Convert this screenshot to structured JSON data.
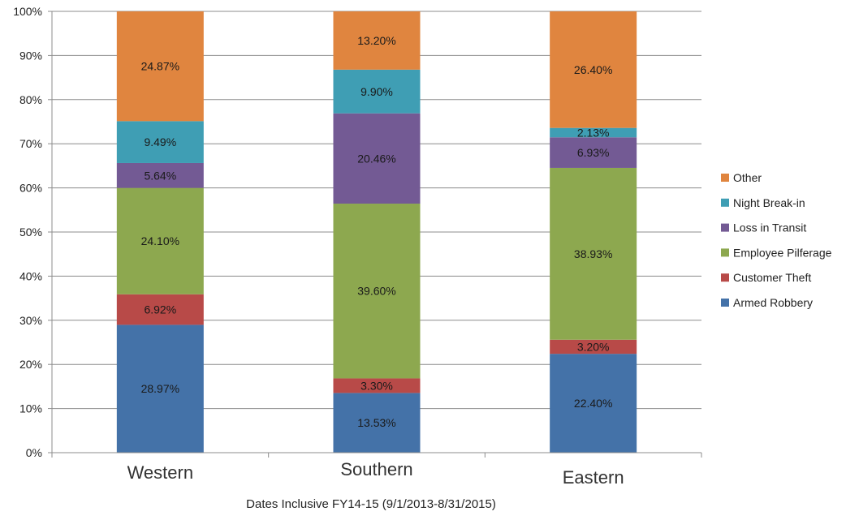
{
  "chart_data": {
    "type": "bar",
    "stacked": true,
    "percent_stacked": true,
    "title": "",
    "xlabel": "Dates Inclusive FY14-15 (9/1/2013-8/31/2015)",
    "ylabel": "",
    "ylim": [
      0,
      100
    ],
    "yticks": [
      "0%",
      "10%",
      "20%",
      "30%",
      "40%",
      "50%",
      "60%",
      "70%",
      "80%",
      "90%",
      "100%"
    ],
    "grid": true,
    "legend_position": "right",
    "categories": [
      "Western",
      "Southern",
      "Eastern"
    ],
    "series": [
      {
        "name": "Armed Robbery",
        "color": "#4472A8",
        "values": [
          28.97,
          13.53,
          22.4
        ],
        "labels": [
          "28.97%",
          "13.53%",
          "22.40%"
        ]
      },
      {
        "name": "Customer Theft",
        "color": "#B84A48",
        "values": [
          6.92,
          3.3,
          3.2
        ],
        "labels": [
          "6.92%",
          "3.30%",
          "3.20%"
        ]
      },
      {
        "name": "Employee Pilferage",
        "color": "#8DA84F",
        "values": [
          24.1,
          39.6,
          38.93
        ],
        "labels": [
          "24.10%",
          "39.60%",
          "38.93%"
        ]
      },
      {
        "name": "Loss in Transit",
        "color": "#735A94",
        "values": [
          5.64,
          20.46,
          6.93
        ],
        "labels": [
          "5.64%",
          "20.46%",
          "6.93%"
        ]
      },
      {
        "name": "Night Break-in",
        "color": "#3F9EB4",
        "values": [
          9.49,
          9.9,
          2.13
        ],
        "labels": [
          "9.49%",
          "9.90%",
          "2.13%"
        ]
      },
      {
        "name": "Other",
        "color": "#E0853F",
        "values": [
          24.87,
          13.2,
          26.4
        ],
        "labels": [
          "24.87%",
          "13.20%",
          "26.40%"
        ]
      }
    ]
  }
}
